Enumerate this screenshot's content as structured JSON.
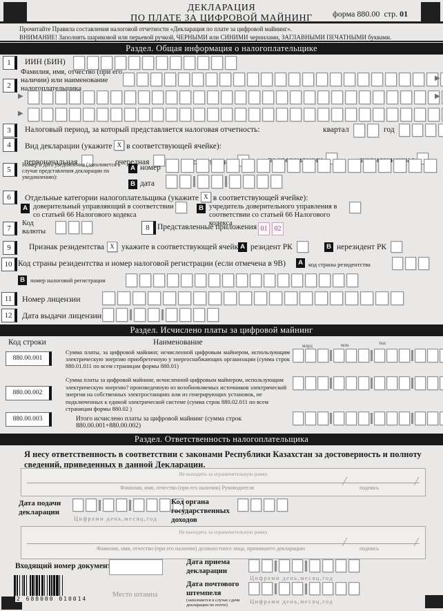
{
  "marks": {
    "a": "A",
    "b": "B",
    "x": "X"
  },
  "header": {
    "title1": "ДЕКЛАРАЦИЯ",
    "title2": "ПО ПЛАТЕ ЗА ЦИФРОВОЙ МАЙНИНГ",
    "form_label": "форма 880.00",
    "page_word": "стр.",
    "page_num": "01",
    "instruction1": "Прочитайте Правила составления налоговой отчетности «Декларация по плате за цифровой майнинг».",
    "instruction2": "ВНИМАНИЕ! Заполнять шариковой или перьевой ручкой, ЧЕРНЫМИ  или СИНИМИ  чернилами, ЗАГЛАВНЫМИ ПЕЧАТНЫМИ буквами."
  },
  "sections": {
    "s1": "Раздел. Общая информация о налогоплательщике",
    "s2": "Раздел. Исчислено платы за цифровой майнинг",
    "s3": "Раздел. Ответственность налогоплательщика"
  },
  "fields": {
    "f1": {
      "num": "1",
      "label": "ИИН (БИН)"
    },
    "f2": {
      "num": "2",
      "label": "Фамилия,  имя,  отчество  (при его наличии) или наименование налогоплательщика"
    },
    "f3": {
      "num": "3",
      "label": "Налоговый период, за который представляется налоговая отчетность:",
      "quarter": "квартал",
      "year": "год"
    },
    "f4": {
      "num": "4",
      "label_pre": "Вид декларации (укажите",
      "label_post": "в соответствующей ячейке):",
      "options": [
        "первоначальная",
        "очередная",
        "дополнительная",
        "по уведомлению",
        "ликвидационная"
      ]
    },
    "f5": {
      "num": "5",
      "label": "Номер и дата уведомления (заполняется в случае представления декларации по уведомлению):",
      "a_label": "номер",
      "b_label": "дата"
    },
    "f6": {
      "num": "6",
      "label_pre": "Отдельные категории налогоплательщика (укажите",
      "label_post": "в соответствующей ячейке):",
      "a_label": "доверительный управляющий в соответствии со статьей 66 Налогового кодекса",
      "b_label": "учредитель доверительного управления в соответствии со статьей 66 Налогового кодекса"
    },
    "f7": {
      "num": "7",
      "label": "Код валюты"
    },
    "f8": {
      "num": "8",
      "label": "Представленные приложения",
      "apps": [
        "01",
        "02"
      ]
    },
    "f9": {
      "num": "9",
      "label": "Признак резидентства",
      "hint": "укажите в соответствующей ячейке",
      "a_label": "резидент РК",
      "b_label": "нерезидент РК"
    },
    "f10": {
      "num": "10",
      "label": "Код страны резидентства и номер налоговой регистрации (если отмечена в 9В)",
      "a_label": "код страны резидентства",
      "b_label": "номер налоговой регистрации"
    },
    "f11": {
      "num": "11",
      "label": "Номер лицензии"
    },
    "f12": {
      "num": "12",
      "label": "Дата  выдачи лицензии"
    }
  },
  "calc": {
    "col_code": "Код строки",
    "col_name": "Наименование",
    "scales": [
      "млрд",
      "млн",
      "тыс"
    ],
    "rows": [
      {
        "code": "880.00.001",
        "text": "Сумма платы, за цифровой майнинг, исчисленной цифровым майнером, использующим электрическую  энергию  приобретенную  у  энергоснабжающих  организации (сумма строк 880.01.011 по всем страницам формы 880.01)"
      },
      {
        "code": "880.00.002",
        "text": "Сумма платы за цифровой майнинг, исчисленной цифровым майнером, использующим  электрическую энергию? произведенную из возобновляемых источников электрической энергии на собственных электростанциях или из генерирующих установок, не подключенных к единой электрической системе (сумма строк 880.02.011 по всем страницам формы 880.02 )"
      },
      {
        "code": "880.00.003",
        "text": "Итого исчислено платы за цифровой майнинг (сумма строк 880.00.001+880.00.002)"
      }
    ]
  },
  "resp": {
    "statement": "Я несу ответственность в соответствии с законами  Республики Казахстан за достоверность и  полноту сведений, приведенных в данной Декларации.",
    "frame_note": "Не выходить за ограничительную рамку",
    "sig1_caption": "Фамилия, имя, отчество (при его наличии) Руководителя",
    "sig2_caption": "Фамилия, имя, отчество (при его наличии) должностного лица, принявшего декларацию",
    "sign_label": "подпись",
    "submit_date_label": "Дата подачи декларации",
    "date_format": "Цифрами день,месяц,год",
    "authority_label": "Код органа государственных доходов",
    "incoming_label": "Входящий номер документа",
    "receive_date_label": "Дата приема декларации",
    "stamp_label": "Место штампа",
    "postmark_label": "Дата почтового штемпеля",
    "postmark_note": "(заполняется в случае сдачи декларации по почте)",
    "barcode_digits": "2 688000 010014"
  }
}
